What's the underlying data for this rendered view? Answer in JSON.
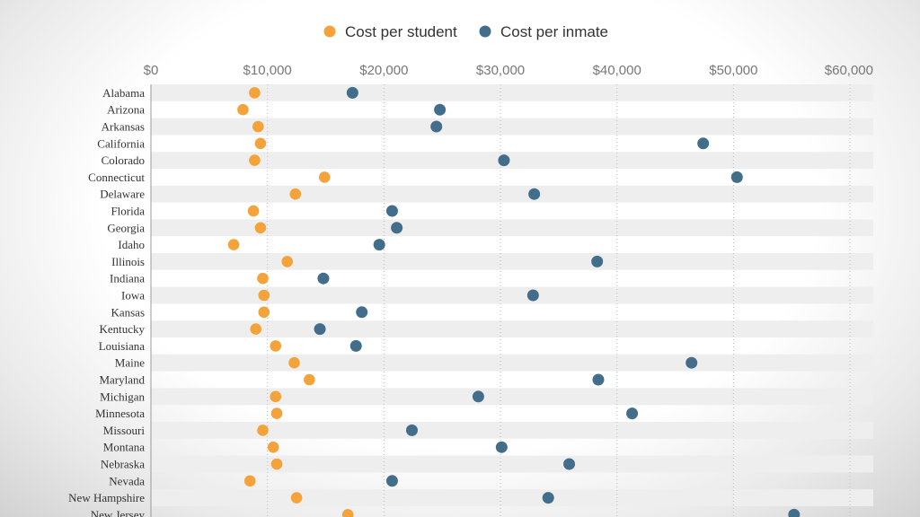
{
  "chart_data": {
    "type": "scatter",
    "subtype": "dot-plot",
    "title": "",
    "xlabel": "",
    "ylabel": "",
    "xlim": [
      0,
      62000
    ],
    "x_ticks": [
      0,
      10000,
      20000,
      30000,
      40000,
      50000,
      60000
    ],
    "x_tick_labels": [
      "$0",
      "$10,000",
      "$20,000",
      "$30,000",
      "$40,000",
      "$50,000",
      "$60,000"
    ],
    "grid": "vertical dotted",
    "legend_position": "top-center",
    "categories": [
      "Alabama",
      "Arizona",
      "Arkansas",
      "California",
      "Colorado",
      "Connecticut",
      "Delaware",
      "Florida",
      "Georgia",
      "Idaho",
      "Illinois",
      "Indiana",
      "Iowa",
      "Kansas",
      "Kentucky",
      "Louisiana",
      "Maine",
      "Maryland",
      "Michigan",
      "Minnesota",
      "Missouri",
      "Montana",
      "Nebraska",
      "Nevada",
      "New Hampshire",
      "New Jersey"
    ],
    "series": [
      {
        "name": "Cost per student",
        "color": "#f4a23a",
        "values": [
          8900,
          7900,
          9200,
          9400,
          8900,
          14900,
          12400,
          8800,
          9400,
          7100,
          11700,
          9600,
          9700,
          9700,
          9000,
          10700,
          12300,
          13600,
          10700,
          10800,
          9600,
          10500,
          10800,
          8500,
          12500,
          16900
        ]
      },
      {
        "name": "Cost per inmate",
        "color": "#426e8c",
        "values": [
          17300,
          24800,
          24500,
          47400,
          30300,
          50300,
          32900,
          20700,
          21100,
          19600,
          38300,
          14800,
          32800,
          18100,
          14500,
          17600,
          46400,
          38400,
          28100,
          41300,
          22400,
          30100,
          35900,
          20700,
          34100,
          55200
        ]
      }
    ]
  }
}
